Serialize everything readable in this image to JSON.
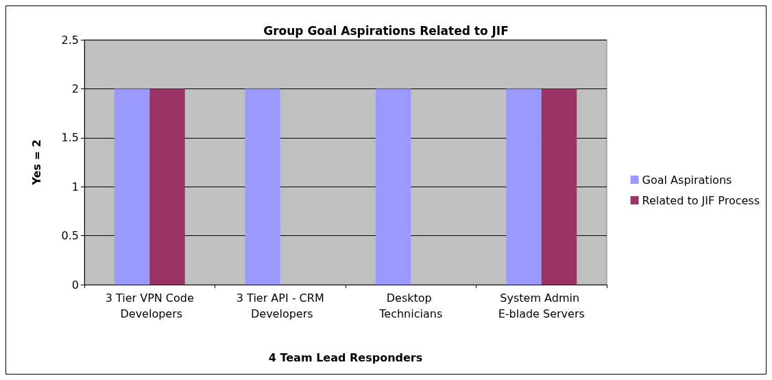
{
  "chart_data": {
    "type": "bar",
    "title": "Group Goal Aspirations Related to JIF",
    "xlabel": "4 Team Lead Responders",
    "ylabel": "Yes = 2",
    "categories": [
      "3 Tier VPN Code Developers",
      "3 Tier API - CRM Developers",
      "Desktop Technicians",
      "System Admin E-blade Servers"
    ],
    "series": [
      {
        "name": "Goal Aspirations",
        "color": "#9999ff",
        "values": [
          2,
          2,
          2,
          2
        ]
      },
      {
        "name": "Related to JIF Process",
        "color": "#993366",
        "values": [
          2,
          0,
          0,
          2
        ]
      }
    ],
    "ylim": [
      0,
      2.5
    ],
    "yticks": [
      0,
      0.5,
      1,
      1.5,
      2,
      2.5
    ],
    "grid": "y",
    "legend": "right"
  }
}
